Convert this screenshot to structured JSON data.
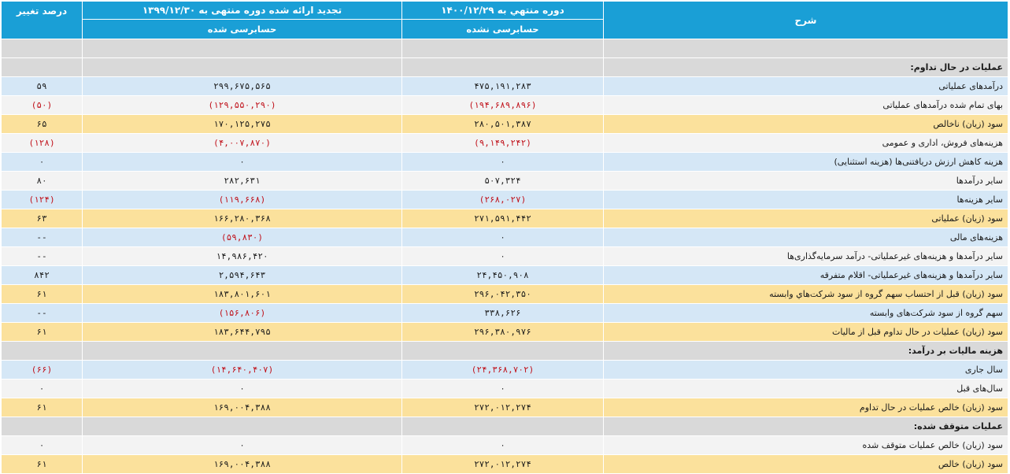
{
  "header": {
    "desc": "شرح",
    "period_current": "دوره منتهي به ۱۴۰۰/۱۲/۲۹",
    "period_prior": "تجدید ارائه شده دوره منتهی به ۱۳۹۹/۱۲/۳۰",
    "pct": "درصد تغییر",
    "audit_current": "حسابرسی نشده",
    "audit_prior": "حسابرسی شده"
  },
  "rows": [
    {
      "type": "section",
      "label": ""
    },
    {
      "type": "section",
      "label": "عملیات در حال تداوم:"
    },
    {
      "type": "blue",
      "label": "درآمدهای عملیاتی",
      "cur": "۴۷۵,۱۹۱,۲۸۳",
      "prior": "۲۹۹,۶۷۵,۵۶۵",
      "pct": "۵۹",
      "cur_neg": false,
      "prior_neg": false,
      "pct_neg": false
    },
    {
      "type": "light",
      "label": "بهای تمام شده درآمدهای عملیاتی",
      "cur": "(۱۹۴,۶۸۹,۸۹۶)",
      "prior": "(۱۲۹,۵۵۰,۲۹۰)",
      "pct": "(۵۰)",
      "cur_neg": true,
      "prior_neg": true,
      "pct_neg": true
    },
    {
      "type": "yellow",
      "label": "سود (زیان) ناخالص",
      "cur": "۲۸۰,۵۰۱,۳۸۷",
      "prior": "۱۷۰,۱۲۵,۲۷۵",
      "pct": "۶۵",
      "cur_neg": false,
      "prior_neg": false,
      "pct_neg": false
    },
    {
      "type": "light",
      "label": "هزینه‌های فروش، اداری و عمومی",
      "cur": "(۹,۱۴۹,۲۴۲)",
      "prior": "(۴,۰۰۷,۸۷۰)",
      "pct": "(۱۲۸)",
      "cur_neg": true,
      "prior_neg": true,
      "pct_neg": true
    },
    {
      "type": "blue",
      "label": "هزینه کاهش ارزش دریافتنی‌ها (هزینه استثنایی)",
      "cur": "۰",
      "prior": "۰",
      "pct": "۰",
      "cur_neg": false,
      "prior_neg": false,
      "pct_neg": false
    },
    {
      "type": "light",
      "label": "سایر درآمدها",
      "cur": "۵۰۷,۳۲۴",
      "prior": "۲۸۲,۶۳۱",
      "pct": "۸۰",
      "cur_neg": false,
      "prior_neg": false,
      "pct_neg": false
    },
    {
      "type": "blue",
      "label": "سایر هزینه‌ها",
      "cur": "(۲۶۸,۰۲۷)",
      "prior": "(۱۱۹,۶۶۸)",
      "pct": "(۱۲۴)",
      "cur_neg": true,
      "prior_neg": true,
      "pct_neg": true
    },
    {
      "type": "yellow",
      "label": "سود (زیان) عملیاتی",
      "cur": "۲۷۱,۵۹۱,۴۴۲",
      "prior": "۱۶۶,۲۸۰,۳۶۸",
      "pct": "۶۳",
      "cur_neg": false,
      "prior_neg": false,
      "pct_neg": false
    },
    {
      "type": "blue",
      "label": "هزینه‌های مالی",
      "cur": "۰",
      "prior": "(۵۹,۸۳۰)",
      "pct": "--",
      "cur_neg": false,
      "prior_neg": true,
      "pct_neg": false
    },
    {
      "type": "light",
      "label": "سایر درآمدها و هزینه‌های غیرعملیاتی- درآمد سرمایه‌گذاری‌ها",
      "cur": "۰",
      "prior": "۱۴,۹۸۶,۴۲۰",
      "pct": "--",
      "cur_neg": false,
      "prior_neg": false,
      "pct_neg": false
    },
    {
      "type": "blue",
      "label": "سایر درآمدها و هزینه‌های غیرعملیاتی- اقلام متفرقه",
      "cur": "۲۴,۴۵۰,۹۰۸",
      "prior": "۲,۵۹۴,۶۴۳",
      "pct": "۸۴۲",
      "cur_neg": false,
      "prior_neg": false,
      "pct_neg": false
    },
    {
      "type": "yellow",
      "label": "سود (زیان) قبل از احتساب سهم گروه از سود شرکت‌هاي وابسته",
      "cur": "۲۹۶,۰۴۲,۳۵۰",
      "prior": "۱۸۳,۸۰۱,۶۰۱",
      "pct": "۶۱",
      "cur_neg": false,
      "prior_neg": false,
      "pct_neg": false
    },
    {
      "type": "blue",
      "label": "سهم گروه از سود شرکت‌های وابسته",
      "cur": "۳۳۸,۶۲۶",
      "prior": "(۱۵۶,۸۰۶)",
      "pct": "--",
      "cur_neg": false,
      "prior_neg": true,
      "pct_neg": false
    },
    {
      "type": "yellow",
      "label": "سود (زیان) عملیات در حال تداوم قبل از مالیات",
      "cur": "۲۹۶,۳۸۰,۹۷۶",
      "prior": "۱۸۳,۶۴۴,۷۹۵",
      "pct": "۶۱",
      "cur_neg": false,
      "prior_neg": false,
      "pct_neg": false
    },
    {
      "type": "section",
      "label": "هزینه مالیات بر درآمد:"
    },
    {
      "type": "blue",
      "label": "سال جاری",
      "cur": "(۲۴,۳۶۸,۷۰۲)",
      "prior": "(۱۴,۶۴۰,۴۰۷)",
      "pct": "(۶۶)",
      "cur_neg": true,
      "prior_neg": true,
      "pct_neg": true
    },
    {
      "type": "light",
      "label": "سال‌های قبل",
      "cur": "۰",
      "prior": "۰",
      "pct": "۰",
      "cur_neg": false,
      "prior_neg": false,
      "pct_neg": false
    },
    {
      "type": "yellow",
      "label": "سود (زیان) خالص عملیات در حال تداوم",
      "cur": "۲۷۲,۰۱۲,۲۷۴",
      "prior": "۱۶۹,۰۰۴,۳۸۸",
      "pct": "۶۱",
      "cur_neg": false,
      "prior_neg": false,
      "pct_neg": false
    },
    {
      "type": "section",
      "label": "عملیات متوقف شده:"
    },
    {
      "type": "light",
      "label": "سود (زیان) خالص عملیات متوقف شده",
      "cur": "۰",
      "prior": "۰",
      "pct": "۰",
      "cur_neg": false,
      "prior_neg": false,
      "pct_neg": false
    },
    {
      "type": "yellow",
      "label": "سود (زیان) خالص",
      "cur": "۲۷۲,۰۱۲,۲۷۴",
      "prior": "۱۶۹,۰۰۴,۳۸۸",
      "pct": "۶۱",
      "cur_neg": false,
      "prior_neg": false,
      "pct_neg": false
    }
  ]
}
